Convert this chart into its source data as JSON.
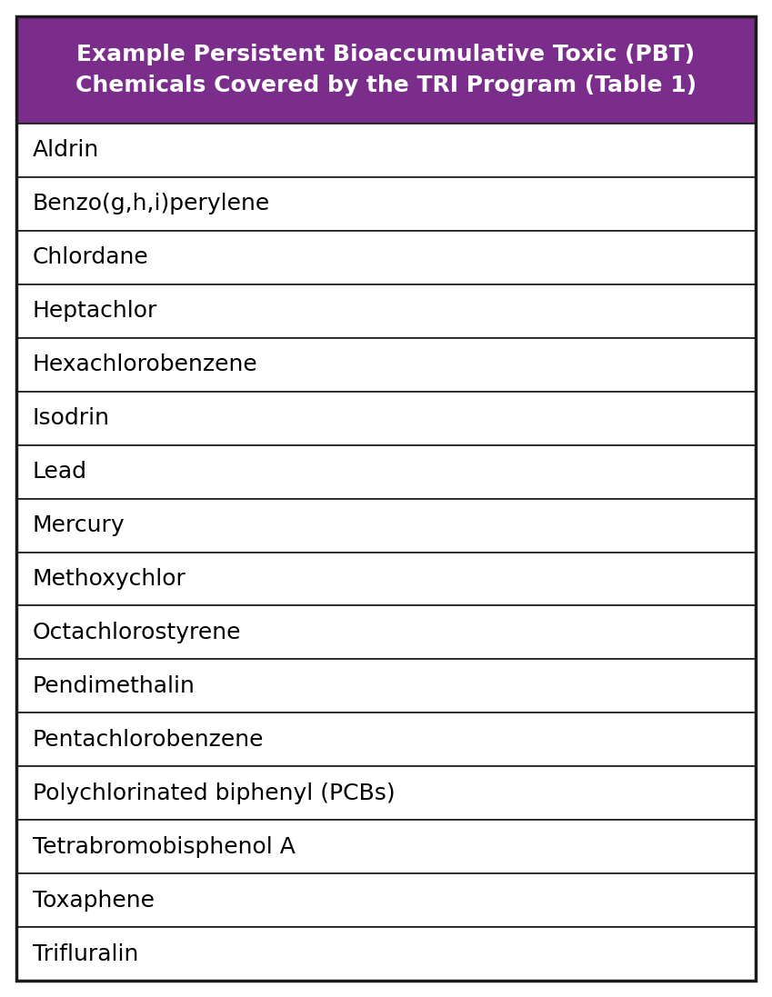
{
  "title_line1": "Example Persistent Bioaccumulative Toxic (PBT)",
  "title_line2": "Chemicals Covered by the TRI Program (Table 1)",
  "title_bg_color": "#7B2D8B",
  "title_text_color": "#FFFFFF",
  "table_bg_color": "#FFFFFF",
  "border_color": "#1a1a1a",
  "row_text_color": "#000000",
  "chemicals": [
    "Aldrin",
    "Benzo(g,h,i)perylene",
    "Chlordane",
    "Heptachlor",
    "Hexachlorobenzene",
    "Isodrin",
    "Lead",
    "Mercury",
    "Methoxychlor",
    "Octachlorostyrene",
    "Pendimethalin",
    "Pentachlorobenzene",
    "Polychlorinated biphenyl (PCBs)",
    "Tetrabromobisphenol A",
    "Toxaphene",
    "Trifluralin"
  ],
  "title_fontsize": 18,
  "row_fontsize": 18,
  "fig_width": 8.49,
  "fig_height": 10.97,
  "dpi": 100
}
